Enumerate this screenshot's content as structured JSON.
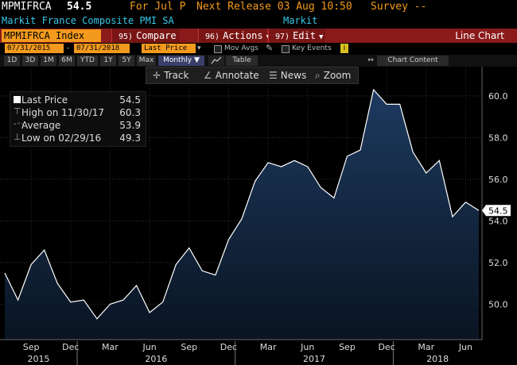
{
  "header": {
    "ticker": "MPMIFRCA",
    "price": "54.5",
    "period": "For Jul P",
    "next_release": "Next Release 03 Aug 10:50",
    "survey": "Survey --",
    "name": "Markit France Composite PMI SA",
    "source": "Markit"
  },
  "toolbar": {
    "security": "MPMIFRCA Index",
    "compare": "Compare",
    "compare_num": "95)",
    "actions": "Actions",
    "actions_num": "96)",
    "edit": "Edit",
    "edit_num": "97)",
    "chart_type": "Line Chart"
  },
  "daterow": {
    "start": "07/31/2015",
    "end": "07/31/2018",
    "field": "Last Price",
    "mov_avgs": "Mov Avgs",
    "key_events": "Key Events"
  },
  "periods": {
    "items": [
      "1D",
      "3D",
      "1M",
      "6M",
      "YTD",
      "1Y",
      "5Y",
      "Max"
    ],
    "frequency": "Monthly",
    "table": "Table",
    "chart_content": "Chart Content"
  },
  "tools": {
    "track": "Track",
    "annotate": "Annotate",
    "news": "News",
    "zoom": "Zoom"
  },
  "legend": {
    "last_label": "Last Price",
    "last_value": "54.5",
    "high_label": "High on 11/30/17",
    "high_value": "60.3",
    "avg_label": "Average",
    "avg_value": "53.9",
    "low_label": "Low on 02/29/16",
    "low_value": "49.3"
  },
  "colors": {
    "line": "#ffffff",
    "fill_top": "#1d3a5f",
    "fill_bottom": "#0a1422",
    "toolbar_red": "#8b1a1a",
    "orange": "#f39a1e",
    "cyan": "#37c8e8"
  },
  "chart_data": {
    "type": "area",
    "x": [
      "Jul 2015",
      "Aug 2015",
      "Sep 2015",
      "Oct 2015",
      "Nov 2015",
      "Dec 2015",
      "Jan 2016",
      "Feb 2016",
      "Mar 2016",
      "Apr 2016",
      "May 2016",
      "Jun 2016",
      "Jul 2016",
      "Aug 2016",
      "Sep 2016",
      "Oct 2016",
      "Nov 2016",
      "Dec 2016",
      "Jan 2017",
      "Feb 2017",
      "Mar 2017",
      "Apr 2017",
      "May 2017",
      "Jun 2017",
      "Jul 2017",
      "Aug 2017",
      "Sep 2017",
      "Oct 2017",
      "Nov 2017",
      "Dec 2017",
      "Jan 2018",
      "Feb 2018",
      "Mar 2018",
      "Apr 2018",
      "May 2018",
      "Jun 2018",
      "Jul 2018"
    ],
    "values": [
      51.5,
      50.2,
      51.9,
      52.6,
      51.0,
      50.1,
      50.2,
      49.3,
      50.0,
      50.2,
      50.9,
      49.6,
      50.1,
      51.9,
      52.7,
      51.6,
      51.4,
      53.1,
      54.1,
      55.9,
      56.8,
      56.6,
      56.9,
      56.6,
      55.6,
      55.1,
      57.1,
      57.4,
      60.3,
      59.6,
      59.6,
      57.3,
      56.3,
      56.9,
      54.2,
      54.9,
      54.5
    ],
    "last_value_label": "54.5",
    "y_ticks": [
      "50.0",
      "52.0",
      "54.0",
      "56.0",
      "58.0",
      "60.0"
    ],
    "ylim": [
      48.3,
      61.1
    ],
    "x_month_ticks": [
      "Sep",
      "Dec",
      "Mar",
      "Jun",
      "Sep",
      "Dec",
      "Mar",
      "Jun",
      "Sep",
      "Dec",
      "Mar",
      "Jun"
    ],
    "x_year_ticks": [
      "2015",
      "2016",
      "2017",
      "2018"
    ],
    "grid": true
  }
}
